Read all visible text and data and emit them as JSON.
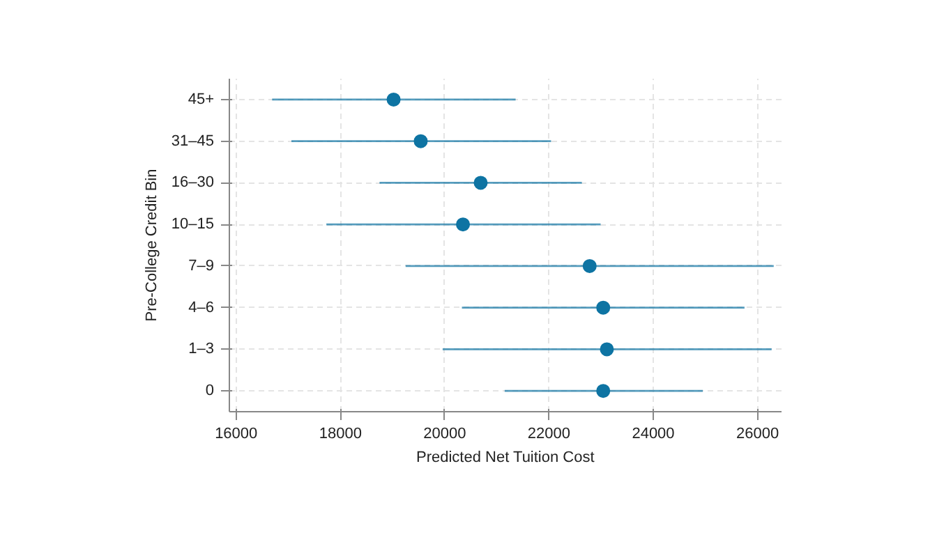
{
  "chart_data": {
    "type": "scatter",
    "orientation": "horizontal",
    "xlabel": "Predicted Net Tuition Cost",
    "ylabel": "Pre-College Credit Bin",
    "categories": [
      "45+",
      "31–45",
      "16–30",
      "10–15",
      "7–9",
      "4–6",
      "1–3",
      "0"
    ],
    "series": [
      {
        "color": "#0e74a3",
        "values": [
          19020,
          19540,
          20690,
          20350,
          22780,
          23040,
          23110,
          23040
        ],
        "errors": [
          [
            16690,
            21360
          ],
          [
            17060,
            22040
          ],
          [
            18750,
            22630
          ],
          [
            17730,
            22990
          ],
          [
            19250,
            26310
          ],
          [
            20330,
            25750
          ],
          [
            19960,
            26270
          ],
          [
            21150,
            24950
          ]
        ]
      }
    ],
    "xlim": [
      15870,
      26460
    ],
    "xticks": [
      16000,
      18000,
      20000,
      22000,
      24000,
      26000
    ],
    "grid": true,
    "marker": "circle"
  }
}
